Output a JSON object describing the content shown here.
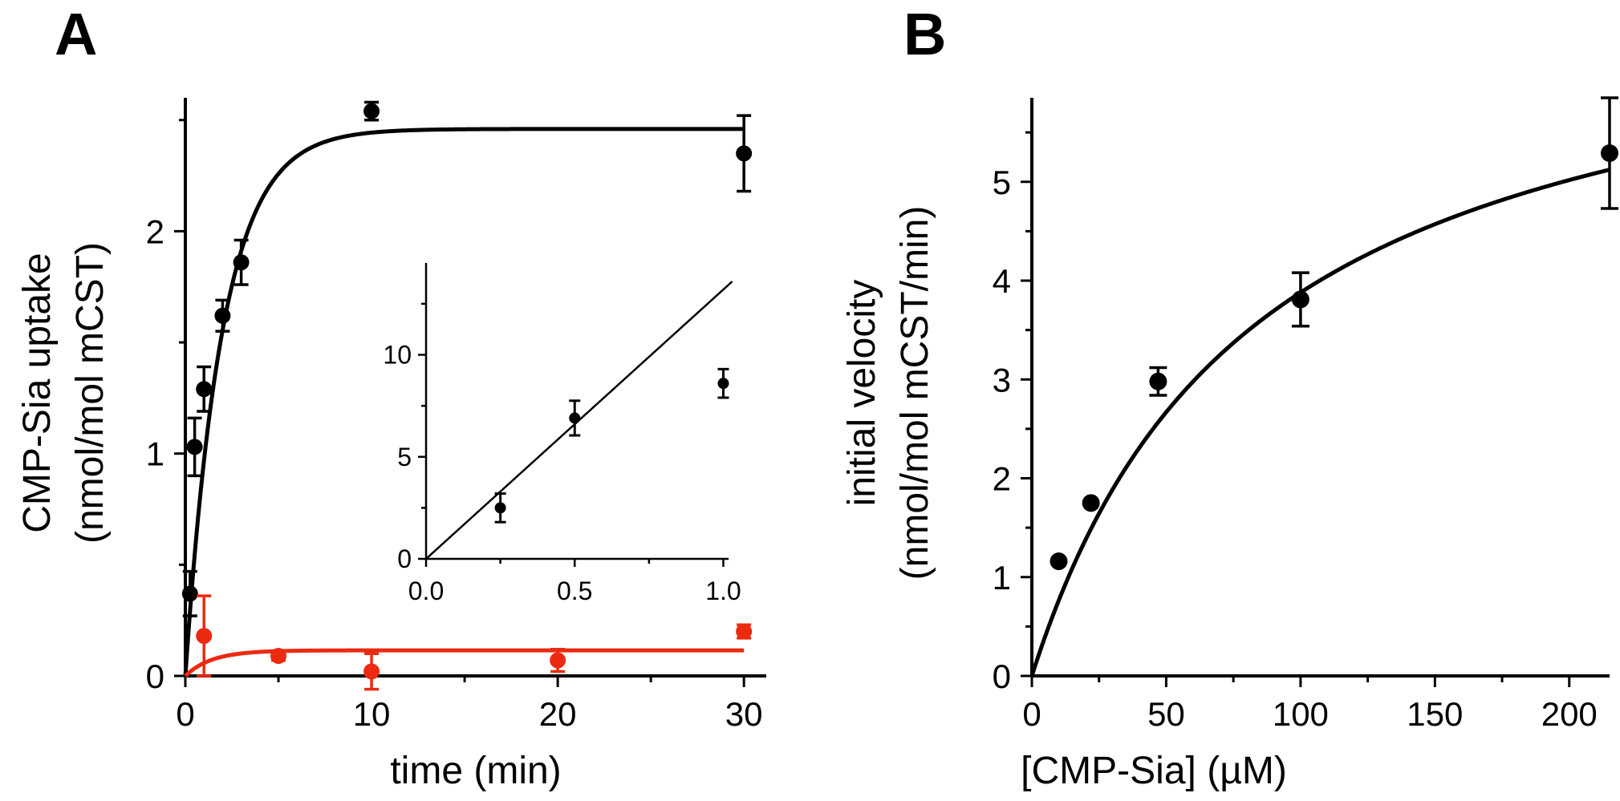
{
  "chart_data": [
    {
      "panel": "A",
      "type": "scatter",
      "xlabel": "time (min)",
      "ylabel_lines": [
        "CMP-Sia uptake",
        "(nmol/mol mCST)"
      ],
      "xlim": [
        0,
        31.2
      ],
      "ylim": [
        0,
        2.6
      ],
      "xticks": [
        0,
        10,
        20,
        30
      ],
      "yticks": [
        0,
        1,
        2
      ],
      "colors": {
        "black": "#000000",
        "red": "#ec2a11"
      },
      "series": [
        {
          "color": "black",
          "points": [
            {
              "x": 0.25,
              "y": 0.37,
              "err": 0.1
            },
            {
              "x": 0.5,
              "y": 1.03,
              "err": 0.13
            },
            {
              "x": 1,
              "y": 1.29,
              "err": 0.1
            },
            {
              "x": 2,
              "y": 1.62,
              "err": 0.07
            },
            {
              "x": 3,
              "y": 1.86,
              "err": 0.1
            },
            {
              "x": 10,
              "y": 2.54,
              "err": 0.04
            },
            {
              "x": 30,
              "y": 2.35,
              "err": 0.17
            }
          ],
          "fit": {
            "model": "single-exponential",
            "plateau": 2.46,
            "k": 0.5
          }
        },
        {
          "color": "red",
          "points": [
            {
              "x": 1,
              "y": 0.18,
              "err": 0.18
            },
            {
              "x": 5,
              "y": 0.09,
              "err": 0.02
            },
            {
              "x": 10,
              "y": 0.02,
              "err": 0.08
            },
            {
              "x": 20,
              "y": 0.07,
              "err": 0.05
            },
            {
              "x": 30,
              "y": 0.2,
              "err": 0.03
            }
          ],
          "fit": {
            "model": "single-exponential",
            "plateau": 0.115,
            "k": 0.7
          }
        }
      ],
      "inset": {
        "type": "scatter",
        "xlim": [
          0,
          1.05
        ],
        "ylim": [
          0,
          14.5
        ],
        "xticks": [
          "0.0",
          "0.5",
          "1.0"
        ],
        "yticks": [
          "0",
          "5",
          "10"
        ],
        "points": [
          {
            "x": 0.25,
            "y": 2.5,
            "err": 0.7
          },
          {
            "x": 0.5,
            "y": 6.9,
            "err": 0.85
          },
          {
            "x": 1,
            "y": 8.6,
            "err": 0.7
          }
        ],
        "fit": {
          "model": "linear",
          "slope": 13.2,
          "intercept": 0
        }
      }
    },
    {
      "panel": "B",
      "type": "scatter",
      "xlabel": "[CMP-Sia] (µM)",
      "ylabel_lines": [
        "initial velocity",
        "(nmol/mol mCST/min)"
      ],
      "xlim": [
        0,
        215
      ],
      "ylim": [
        0,
        5.85
      ],
      "xticks": [
        0,
        50,
        100,
        150,
        200
      ],
      "yticks": [
        0,
        1,
        2,
        3,
        4,
        5
      ],
      "points": [
        {
          "x": 10,
          "y": 1.16,
          "err": 0
        },
        {
          "x": 22,
          "y": 1.75,
          "err": 0
        },
        {
          "x": 47,
          "y": 2.98,
          "err": 0.14
        },
        {
          "x": 100,
          "y": 3.81,
          "err": 0.27
        },
        {
          "x": 215,
          "y": 5.29,
          "err": 0.56
        }
      ],
      "fit": {
        "model": "michaelis-menten",
        "vmax": 7.1,
        "km": 83
      }
    }
  ]
}
